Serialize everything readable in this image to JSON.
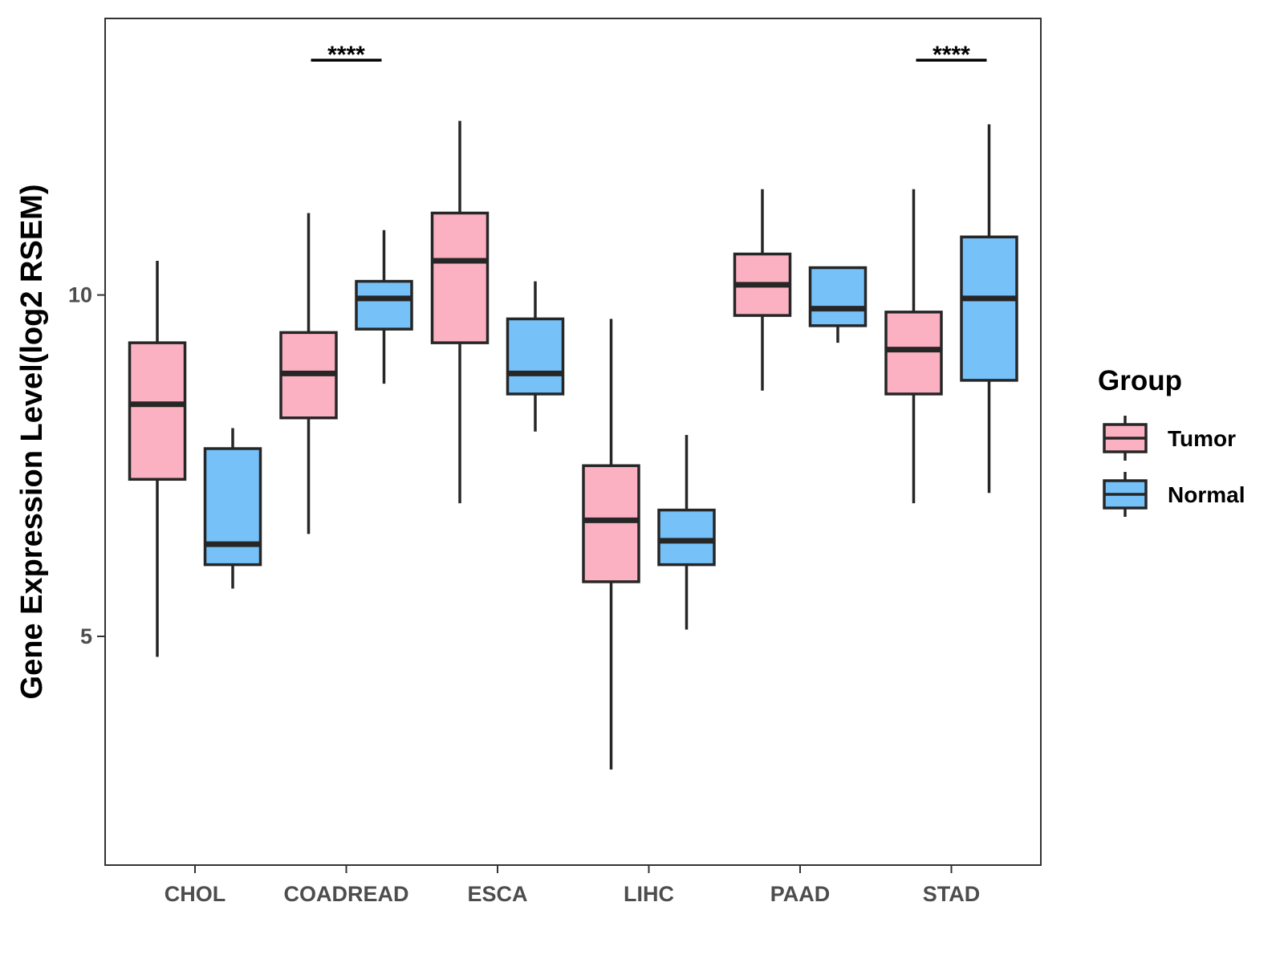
{
  "chart_data": {
    "type": "boxplot",
    "title": "",
    "xlabel": "",
    "ylabel": "Gene Expression Level(log2 RSEM)",
    "ylim": [
      1.65,
      14.05
    ],
    "yticks": [
      5,
      10
    ],
    "categories": [
      "CHOL",
      "COADREAD",
      "ESCA",
      "LIHC",
      "PAAD",
      "STAD"
    ],
    "legend": {
      "title": "Group",
      "position": "right"
    },
    "series": [
      {
        "name": "Tumor",
        "color": "#FBB1C2",
        "boxes": [
          {
            "category": "CHOL",
            "min": 4.7,
            "q1": 7.3,
            "median": 8.4,
            "q3": 9.3,
            "max": 10.5
          },
          {
            "category": "COADREAD",
            "min": 6.5,
            "q1": 8.2,
            "median": 8.85,
            "q3": 9.45,
            "max": 11.2
          },
          {
            "category": "ESCA",
            "min": 6.95,
            "q1": 9.3,
            "median": 10.5,
            "q3": 11.2,
            "max": 12.55
          },
          {
            "category": "LIHC",
            "min": 3.05,
            "q1": 5.8,
            "median": 6.7,
            "q3": 7.5,
            "max": 9.65
          },
          {
            "category": "PAAD",
            "min": 8.6,
            "q1": 9.7,
            "median": 10.15,
            "q3": 10.6,
            "max": 11.55
          },
          {
            "category": "STAD",
            "min": 6.95,
            "q1": 8.55,
            "median": 9.2,
            "q3": 9.75,
            "max": 11.55
          }
        ]
      },
      {
        "name": "Normal",
        "color": "#76C1F8",
        "boxes": [
          {
            "category": "CHOL",
            "min": 5.7,
            "q1": 6.05,
            "median": 6.35,
            "q3": 7.75,
            "max": 8.05
          },
          {
            "category": "COADREAD",
            "min": 8.7,
            "q1": 9.5,
            "median": 9.95,
            "q3": 10.2,
            "max": 10.95
          },
          {
            "category": "ESCA",
            "min": 8.0,
            "q1": 8.55,
            "median": 8.85,
            "q3": 9.65,
            "max": 10.2
          },
          {
            "category": "LIHC",
            "min": 5.1,
            "q1": 6.05,
            "median": 6.4,
            "q3": 6.85,
            "max": 7.95
          },
          {
            "category": "PAAD",
            "min": 9.3,
            "q1": 9.55,
            "median": 9.8,
            "q3": 10.4,
            "max": 10.4
          },
          {
            "category": "STAD",
            "min": 7.1,
            "q1": 8.75,
            "median": 9.95,
            "q3": 10.85,
            "max": 12.5
          }
        ]
      }
    ],
    "annotations": [
      {
        "category": "COADREAD",
        "label": "****"
      },
      {
        "category": "STAD",
        "label": "****"
      }
    ],
    "grid": false
  }
}
